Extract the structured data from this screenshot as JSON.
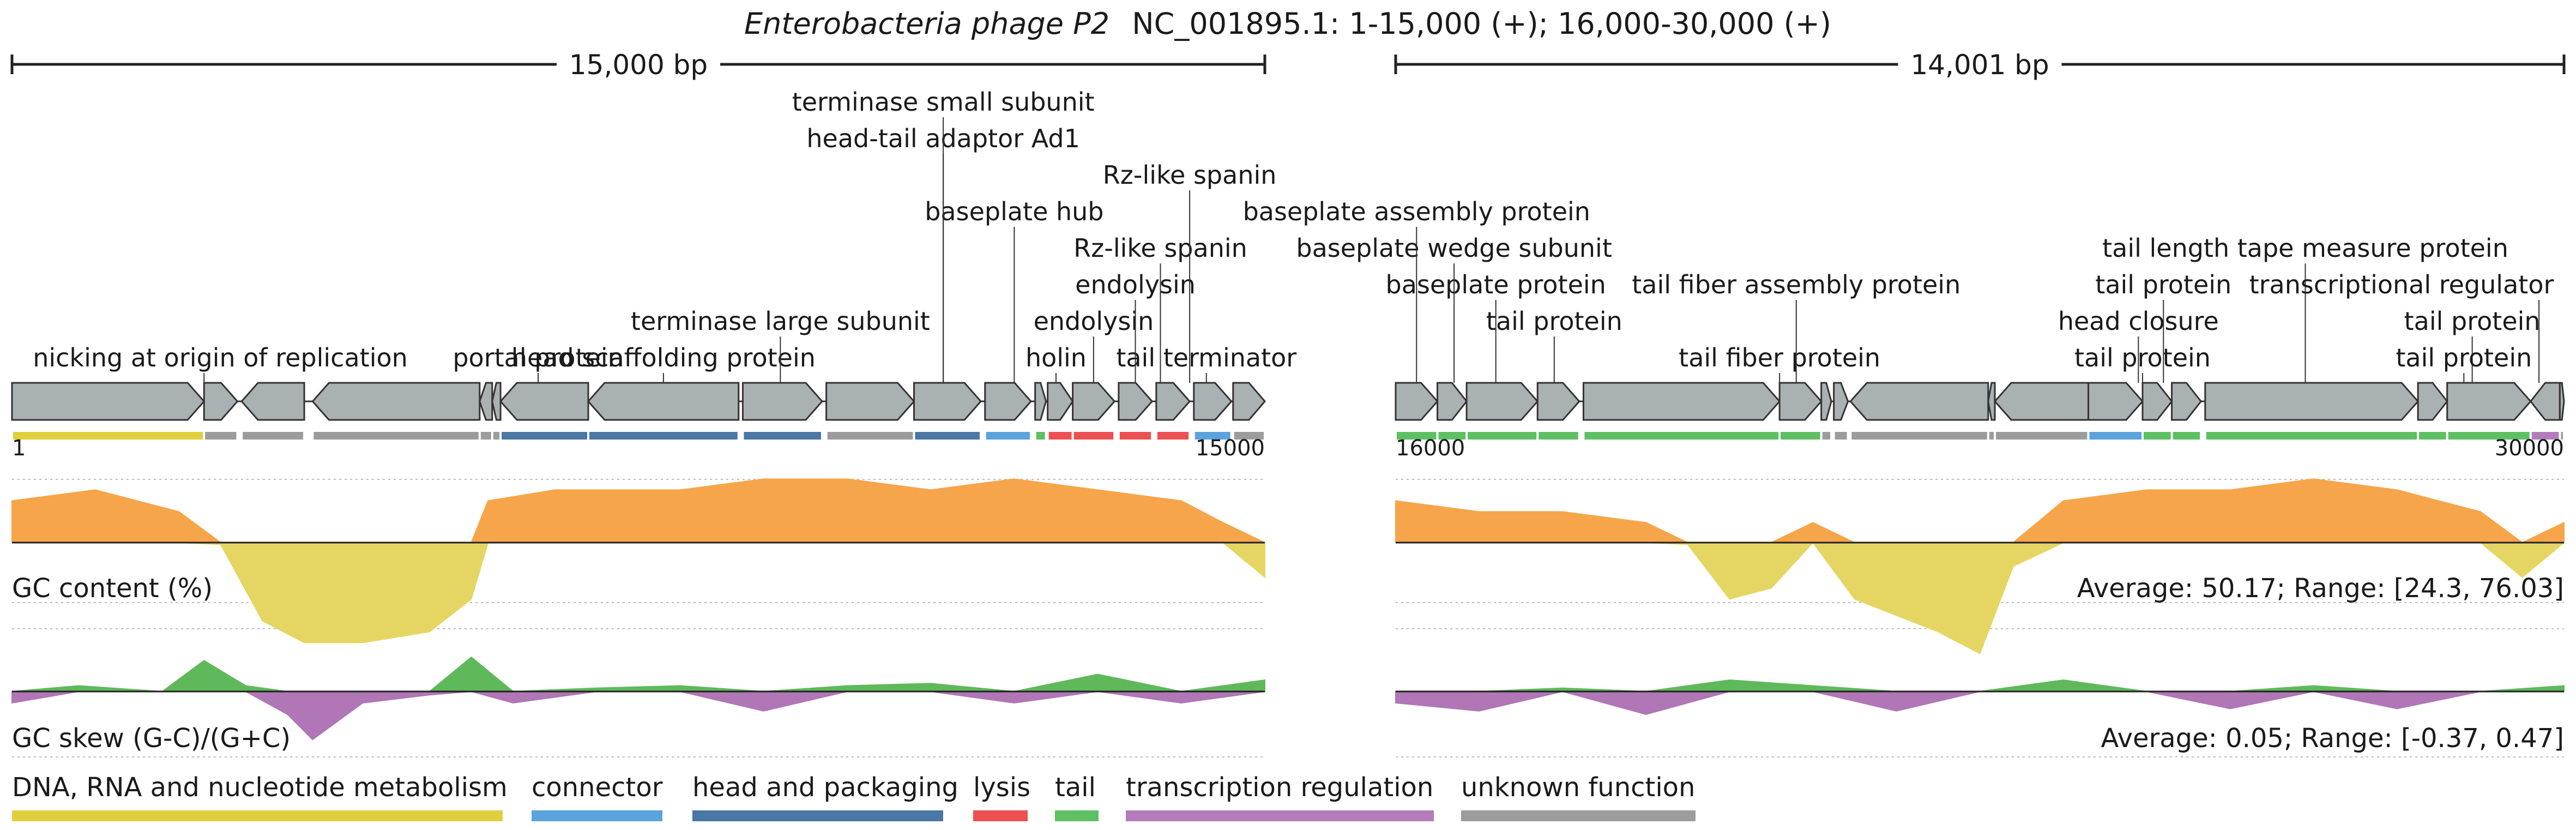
{
  "title": {
    "organism": "Enterobacteria phage P2",
    "accession": "NC_001895.1: 1-15,000 (+); 16,000-30,000 (+)"
  },
  "colors": {
    "dna_rna_nucleotide_metabolism": "#e0cf3c",
    "connector": "#5ba3dc",
    "head_and_packaging": "#4a77a3",
    "lysis": "#ec5052",
    "tail": "#5ec063",
    "transcription_regulation": "#b27cb9",
    "unknown_function": "#9c9c9c",
    "gene_fill": "#aab1b3",
    "gene_stroke": "#333333",
    "gc_above": "#f6a54a",
    "gc_below": "#e5d663",
    "skew_above": "#5fb95b",
    "skew_below": "#b076b5"
  },
  "panels": [
    {
      "id": "left",
      "start": 1,
      "end": 15000,
      "length_label": "15,000 bp",
      "start_label": "1",
      "end_label": "15000",
      "genes": [
        {
          "start": 1,
          "end": 2300,
          "strand": "+",
          "category": "dna_rna_nucleotide_metabolism"
        },
        {
          "start": 2300,
          "end": 2700,
          "strand": "+",
          "category": "unknown_function"
        },
        {
          "start": 2750,
          "end": 3500,
          "strand": "-",
          "category": "unknown_function"
        },
        {
          "start": 3600,
          "end": 5600,
          "strand": "-",
          "category": "unknown_function"
        },
        {
          "start": 5600,
          "end": 5750,
          "strand": "-",
          "category": "unknown_function"
        },
        {
          "start": 5750,
          "end": 5850,
          "strand": "-",
          "category": "unknown_function"
        },
        {
          "start": 5850,
          "end": 6900,
          "strand": "-",
          "category": "head_and_packaging"
        },
        {
          "start": 6900,
          "end": 8700,
          "strand": "-",
          "category": "head_and_packaging"
        },
        {
          "start": 8750,
          "end": 9700,
          "strand": "+",
          "category": "head_and_packaging"
        },
        {
          "start": 9750,
          "end": 10800,
          "strand": "+",
          "category": "unknown_function"
        },
        {
          "start": 10800,
          "end": 11600,
          "strand": "+",
          "category": "head_and_packaging"
        },
        {
          "start": 11650,
          "end": 12200,
          "strand": "+",
          "category": "connector"
        },
        {
          "start": 12250,
          "end": 12380,
          "strand": "+",
          "category": "tail"
        },
        {
          "start": 12400,
          "end": 12700,
          "strand": "+",
          "category": "lysis"
        },
        {
          "start": 12700,
          "end": 13200,
          "strand": "+",
          "category": "lysis"
        },
        {
          "start": 13250,
          "end": 13650,
          "strand": "+",
          "category": "lysis"
        },
        {
          "start": 13700,
          "end": 14100,
          "strand": "+",
          "category": "lysis"
        },
        {
          "start": 14150,
          "end": 14600,
          "strand": "+",
          "category": "connector"
        },
        {
          "start": 14620,
          "end": 15000,
          "strand": "+",
          "category": "unknown_function"
        }
      ],
      "labels": [
        {
          "text": "nicking at origin of replication",
          "pos": 2300,
          "row": 0
        },
        {
          "text": "portal protein",
          "pos": 6300,
          "row": 0
        },
        {
          "text": "head scaffolding protein",
          "pos": 7800,
          "row": 0
        },
        {
          "text": "terminase large subunit",
          "pos": 9200,
          "row": 1
        },
        {
          "text": "tail terminator",
          "pos": 14300,
          "row": 0
        },
        {
          "text": "holin",
          "pos": 12500,
          "row": 0
        },
        {
          "text": "endolysin",
          "pos": 12950,
          "row": 1
        },
        {
          "text": "endolysin",
          "pos": 13450,
          "row": 2
        },
        {
          "text": "Rz-like spanin",
          "pos": 13750,
          "row": 3
        },
        {
          "text": "baseplate hub",
          "pos": 12000,
          "row": 4
        },
        {
          "text": "Rz-like spanin",
          "pos": 14100,
          "row": 5
        },
        {
          "text": "head-tail adaptor Ad1",
          "pos": 11150,
          "row": 6
        },
        {
          "text": "terminase small subunit",
          "pos": 11150,
          "row": 7
        }
      ]
    },
    {
      "id": "right",
      "start": 16000,
      "end": 30000,
      "length_label": "14,001 bp",
      "start_label": "16000",
      "end_label": "30000",
      "genes": [
        {
          "start": 16000,
          "end": 16500,
          "strand": "+",
          "category": "tail"
        },
        {
          "start": 16500,
          "end": 16850,
          "strand": "+",
          "category": "tail"
        },
        {
          "start": 16850,
          "end": 17700,
          "strand": "+",
          "category": "tail"
        },
        {
          "start": 17700,
          "end": 18200,
          "strand": "+",
          "category": "tail"
        },
        {
          "start": 18250,
          "end": 20600,
          "strand": "+",
          "category": "tail"
        },
        {
          "start": 20600,
          "end": 21100,
          "strand": "+",
          "category": "tail"
        },
        {
          "start": 21100,
          "end": 21220,
          "strand": "+",
          "category": "unknown_function"
        },
        {
          "start": 21250,
          "end": 21420,
          "strand": "+",
          "category": "unknown_function"
        },
        {
          "start": 21450,
          "end": 23100,
          "strand": "-",
          "category": "unknown_function"
        },
        {
          "start": 23100,
          "end": 23180,
          "strand": "-",
          "category": "unknown_function"
        },
        {
          "start": 23180,
          "end": 24300,
          "strand": "-",
          "category": "unknown_function"
        },
        {
          "start": 24300,
          "end": 24950,
          "strand": "+",
          "category": "connector"
        },
        {
          "start": 24950,
          "end": 25300,
          "strand": "+",
          "category": "tail"
        },
        {
          "start": 25300,
          "end": 25650,
          "strand": "+",
          "category": "tail"
        },
        {
          "start": 25700,
          "end": 28250,
          "strand": "+",
          "category": "tail"
        },
        {
          "start": 28250,
          "end": 28600,
          "strand": "+",
          "category": "tail"
        },
        {
          "start": 28600,
          "end": 29600,
          "strand": "+",
          "category": "tail"
        },
        {
          "start": 29600,
          "end": 29950,
          "strand": "-",
          "category": "transcription_regulation"
        },
        {
          "start": 29950,
          "end": 30000,
          "strand": "+",
          "category": "unknown_function"
        }
      ],
      "labels": [
        {
          "text": "tail fiber protein",
          "pos": 20600,
          "row": 0
        },
        {
          "text": "tail protein",
          "pos": 17900,
          "row": 1
        },
        {
          "text": "baseplate protein",
          "pos": 17200,
          "row": 2
        },
        {
          "text": "baseplate wedge subunit",
          "pos": 16700,
          "row": 3
        },
        {
          "text": "baseplate assembly protein",
          "pos": 16250,
          "row": 4
        },
        {
          "text": "tail fiber assembly protein",
          "pos": 20800,
          "row": 2
        },
        {
          "text": "tail protein",
          "pos": 24950,
          "row": 0
        },
        {
          "text": "head closure",
          "pos": 24900,
          "row": 1
        },
        {
          "text": "tail protein",
          "pos": 25200,
          "row": 2
        },
        {
          "text": "tail length tape measure protein",
          "pos": 26900,
          "row": 3
        },
        {
          "text": "transcriptional regulator",
          "pos": 29700,
          "row": 2
        },
        {
          "text": "tail protein",
          "pos": 28900,
          "row": 1
        },
        {
          "text": "tail protein",
          "pos": 28800,
          "row": 0
        }
      ]
    }
  ],
  "gc_content": {
    "label": "GC content (%)",
    "summary": "Average: 50.17; Range: [24.3, 76.03]",
    "average": 50.17,
    "range": [
      24.3,
      76.03
    ],
    "profile": [
      {
        "pos": 1,
        "value": 54
      },
      {
        "pos": 1000,
        "value": 55
      },
      {
        "pos": 2000,
        "value": 53
      },
      {
        "pos": 2500,
        "value": 50
      },
      {
        "pos": 3000,
        "value": 43
      },
      {
        "pos": 3500,
        "value": 41
      },
      {
        "pos": 4200,
        "value": 41
      },
      {
        "pos": 5000,
        "value": 42
      },
      {
        "pos": 5500,
        "value": 45
      },
      {
        "pos": 5700,
        "value": 54
      },
      {
        "pos": 6500,
        "value": 55
      },
      {
        "pos": 8000,
        "value": 55
      },
      {
        "pos": 9000,
        "value": 56
      },
      {
        "pos": 10000,
        "value": 56
      },
      {
        "pos": 11000,
        "value": 55
      },
      {
        "pos": 12000,
        "value": 56
      },
      {
        "pos": 13000,
        "value": 55
      },
      {
        "pos": 14000,
        "value": 54
      },
      {
        "pos": 14500,
        "value": 52
      },
      {
        "pos": 15000,
        "value": 47
      },
      {
        "pos": 16000,
        "value": 54
      },
      {
        "pos": 17000,
        "value": 53
      },
      {
        "pos": 18000,
        "value": 53
      },
      {
        "pos": 19000,
        "value": 52
      },
      {
        "pos": 19500,
        "value": 50
      },
      {
        "pos": 20000,
        "value": 45
      },
      {
        "pos": 20500,
        "value": 46
      },
      {
        "pos": 21000,
        "value": 52
      },
      {
        "pos": 21500,
        "value": 45
      },
      {
        "pos": 22500,
        "value": 42
      },
      {
        "pos": 23000,
        "value": 40
      },
      {
        "pos": 23400,
        "value": 48
      },
      {
        "pos": 24000,
        "value": 54
      },
      {
        "pos": 25000,
        "value": 55
      },
      {
        "pos": 26000,
        "value": 55
      },
      {
        "pos": 27000,
        "value": 56
      },
      {
        "pos": 28000,
        "value": 55
      },
      {
        "pos": 29000,
        "value": 53
      },
      {
        "pos": 29500,
        "value": 47
      },
      {
        "pos": 30000,
        "value": 52
      }
    ]
  },
  "gc_skew": {
    "label": "GC skew (G-C)/(G+C)",
    "summary": "Average: 0.05; Range: [-0.37, 0.47]",
    "average": 0.05,
    "range": [
      -0.37,
      0.47
    ],
    "profile": [
      {
        "pos": 1,
        "value": -0.05
      },
      {
        "pos": 800,
        "value": 0.1
      },
      {
        "pos": 1800,
        "value": 0.05
      },
      {
        "pos": 2300,
        "value": 0.32
      },
      {
        "pos": 2800,
        "value": 0.1
      },
      {
        "pos": 3300,
        "value": -0.15
      },
      {
        "pos": 3600,
        "value": -0.37
      },
      {
        "pos": 4200,
        "value": -0.05
      },
      {
        "pos": 5000,
        "value": 0.02
      },
      {
        "pos": 5500,
        "value": 0.35
      },
      {
        "pos": 6000,
        "value": -0.05
      },
      {
        "pos": 7000,
        "value": 0.08
      },
      {
        "pos": 8000,
        "value": 0.1
      },
      {
        "pos": 9000,
        "value": -0.12
      },
      {
        "pos": 10000,
        "value": 0.1
      },
      {
        "pos": 11000,
        "value": 0.12
      },
      {
        "pos": 12000,
        "value": -0.05
      },
      {
        "pos": 13000,
        "value": 0.2
      },
      {
        "pos": 14000,
        "value": -0.05
      },
      {
        "pos": 15000,
        "value": 0.15
      },
      {
        "pos": 16000,
        "value": -0.05
      },
      {
        "pos": 17000,
        "value": -0.12
      },
      {
        "pos": 18000,
        "value": 0.08
      },
      {
        "pos": 19000,
        "value": -0.15
      },
      {
        "pos": 20000,
        "value": 0.15
      },
      {
        "pos": 21000,
        "value": 0.1
      },
      {
        "pos": 22000,
        "value": -0.12
      },
      {
        "pos": 23000,
        "value": 0.05
      },
      {
        "pos": 24000,
        "value": 0.15
      },
      {
        "pos": 25000,
        "value": 0.05
      },
      {
        "pos": 26000,
        "value": -0.1
      },
      {
        "pos": 27000,
        "value": 0.1
      },
      {
        "pos": 28000,
        "value": -0.1
      },
      {
        "pos": 29000,
        "value": 0.05
      },
      {
        "pos": 30000,
        "value": 0.1
      }
    ]
  },
  "legend": [
    {
      "key": "dna_rna_nucleotide_metabolism",
      "label": "DNA, RNA and nucleotide metabolism"
    },
    {
      "key": "connector",
      "label": "connector"
    },
    {
      "key": "head_and_packaging",
      "label": "head and packaging"
    },
    {
      "key": "lysis",
      "label": "lysis"
    },
    {
      "key": "tail",
      "label": "tail"
    },
    {
      "key": "transcription_regulation",
      "label": "transcription regulation"
    },
    {
      "key": "unknown_function",
      "label": "unknown function"
    }
  ]
}
